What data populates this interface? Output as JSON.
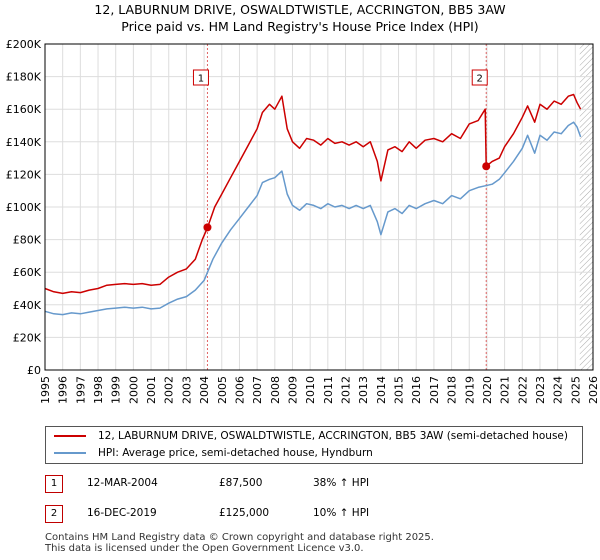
{
  "title_line1": "12, LABURNUM DRIVE, OSWALDTWISTLE, ACCRINGTON, BB5 3AW",
  "title_line2": "Price paid vs. HM Land Registry's House Price Index (HPI)",
  "colors": {
    "property": "#cc0000",
    "hpi": "#6699cc",
    "vline": "#e06666",
    "grid": "#dddddd",
    "hatch": "#aaaaaa"
  },
  "chart_data": {
    "type": "line",
    "title": "Price paid vs. HM Land Registry's House Price Index (HPI)",
    "xlabel": "",
    "ylabel": "",
    "xlim": [
      1995,
      2026
    ],
    "ylim": [
      0,
      200000
    ],
    "y_ticks": [
      0,
      20000,
      40000,
      60000,
      80000,
      100000,
      120000,
      140000,
      160000,
      180000,
      200000
    ],
    "y_tick_labels": [
      "£0",
      "£20K",
      "£40K",
      "£60K",
      "£80K",
      "£100K",
      "£120K",
      "£140K",
      "£160K",
      "£180K",
      "£200K"
    ],
    "x_ticks": [
      "1995",
      "1996",
      "1997",
      "1998",
      "1999",
      "2000",
      "2001",
      "2002",
      "2003",
      "2004",
      "2005",
      "2006",
      "2007",
      "2008",
      "2009",
      "2010",
      "2011",
      "2012",
      "2013",
      "2014",
      "2015",
      "2016",
      "2017",
      "2018",
      "2019",
      "2020",
      "2021",
      "2022",
      "2023",
      "2024",
      "2025",
      "2026"
    ],
    "grid": true,
    "hatched_region_from": 2025.25,
    "series": [
      {
        "name": "12, LABURNUM DRIVE, OSWALDTWISTLE, ACCRINGTON, BB5 3AW (semi-detached house)",
        "color": "#cc0000",
        "x": [
          1995.0,
          1995.5,
          1996.0,
          1996.5,
          1997.0,
          1997.5,
          1998.0,
          1998.5,
          1999.0,
          1999.5,
          2000.0,
          2000.5,
          2001.0,
          2001.5,
          2002.0,
          2002.5,
          2003.0,
          2003.5,
          2003.9,
          2004.2,
          2004.6,
          2005.0,
          2005.5,
          2006.0,
          2006.5,
          2007.0,
          2007.3,
          2007.7,
          2008.0,
          2008.4,
          2008.7,
          2009.0,
          2009.4,
          2009.8,
          2010.2,
          2010.6,
          2011.0,
          2011.4,
          2011.8,
          2012.2,
          2012.6,
          2013.0,
          2013.4,
          2013.8,
          2014.0,
          2014.4,
          2014.8,
          2015.2,
          2015.6,
          2016.0,
          2016.5,
          2017.0,
          2017.5,
          2018.0,
          2018.5,
          2019.0,
          2019.5,
          2019.9,
          2019.96,
          2020.3,
          2020.7,
          2021.0,
          2021.5,
          2022.0,
          2022.3,
          2022.7,
          2023.0,
          2023.4,
          2023.8,
          2024.2,
          2024.6,
          2024.9,
          2025.1,
          2025.3
        ],
        "y": [
          50000,
          48000,
          47000,
          48000,
          47500,
          49000,
          50000,
          52000,
          52500,
          53000,
          52500,
          53000,
          52000,
          52500,
          57000,
          60000,
          62000,
          68000,
          80000,
          87500,
          100000,
          108000,
          118000,
          128000,
          138000,
          148000,
          158000,
          163000,
          160000,
          168000,
          148000,
          140000,
          136000,
          142000,
          141000,
          138000,
          142000,
          139000,
          140000,
          138000,
          140000,
          137000,
          140000,
          128000,
          116000,
          135000,
          137000,
          134000,
          140000,
          136000,
          141000,
          142000,
          140000,
          145000,
          142000,
          151000,
          153000,
          160000,
          125000,
          128000,
          130000,
          137000,
          145000,
          155000,
          162000,
          152000,
          163000,
          160000,
          165000,
          163000,
          168000,
          169000,
          164000,
          160000
        ]
      },
      {
        "name": "HPI: Average price, semi-detached house, Hyndburn",
        "color": "#6699cc",
        "x": [
          1995.0,
          1995.5,
          1996.0,
          1996.5,
          1997.0,
          1997.5,
          1998.0,
          1998.5,
          1999.0,
          1999.5,
          2000.0,
          2000.5,
          2001.0,
          2001.5,
          2002.0,
          2002.5,
          2003.0,
          2003.5,
          2004.0,
          2004.5,
          2005.0,
          2005.5,
          2006.0,
          2006.5,
          2007.0,
          2007.3,
          2007.7,
          2008.0,
          2008.4,
          2008.7,
          2009.0,
          2009.4,
          2009.8,
          2010.2,
          2010.6,
          2011.0,
          2011.4,
          2011.8,
          2012.2,
          2012.6,
          2013.0,
          2013.4,
          2013.8,
          2014.0,
          2014.4,
          2014.8,
          2015.2,
          2015.6,
          2016.0,
          2016.5,
          2017.0,
          2017.5,
          2018.0,
          2018.5,
          2019.0,
          2019.5,
          2019.9,
          2020.3,
          2020.7,
          2021.0,
          2021.5,
          2022.0,
          2022.3,
          2022.7,
          2023.0,
          2023.4,
          2023.8,
          2024.2,
          2024.6,
          2024.9,
          2025.1,
          2025.3
        ],
        "y": [
          36000,
          34500,
          34000,
          35000,
          34500,
          35500,
          36500,
          37500,
          38000,
          38500,
          38000,
          38500,
          37500,
          38000,
          41000,
          43500,
          45000,
          49000,
          55000,
          68000,
          78000,
          86000,
          93000,
          100000,
          107000,
          115000,
          117000,
          118000,
          122000,
          108000,
          101000,
          98000,
          102000,
          101000,
          99000,
          102000,
          100000,
          101000,
          99000,
          101000,
          99000,
          101000,
          91000,
          83000,
          97000,
          99000,
          96000,
          101000,
          99000,
          102000,
          104000,
          102000,
          107000,
          105000,
          110000,
          112000,
          113000,
          114000,
          117000,
          121000,
          128000,
          136000,
          144000,
          133000,
          144000,
          141000,
          146000,
          145000,
          150000,
          152000,
          149000,
          143000
        ]
      }
    ],
    "sales": [
      {
        "label": "1",
        "x": 2004.19,
        "y": 87500
      },
      {
        "label": "2",
        "x": 2019.96,
        "y": 125000
      }
    ]
  },
  "legend": {
    "property_label": "12, LABURNUM DRIVE, OSWALDTWISTLE, ACCRINGTON, BB5 3AW (semi-detached house)",
    "hpi_label": "HPI: Average price, semi-detached house, Hyndburn"
  },
  "sales_table": [
    {
      "num": "1",
      "date": "12-MAR-2004",
      "price": "£87,500",
      "hpi": "38% ↑ HPI"
    },
    {
      "num": "2",
      "date": "16-DEC-2019",
      "price": "£125,000",
      "hpi": "10% ↑ HPI"
    }
  ],
  "footer": {
    "line1": "Contains HM Land Registry data © Crown copyright and database right 2025.",
    "line2": "This data is licensed under the Open Government Licence v3.0."
  }
}
